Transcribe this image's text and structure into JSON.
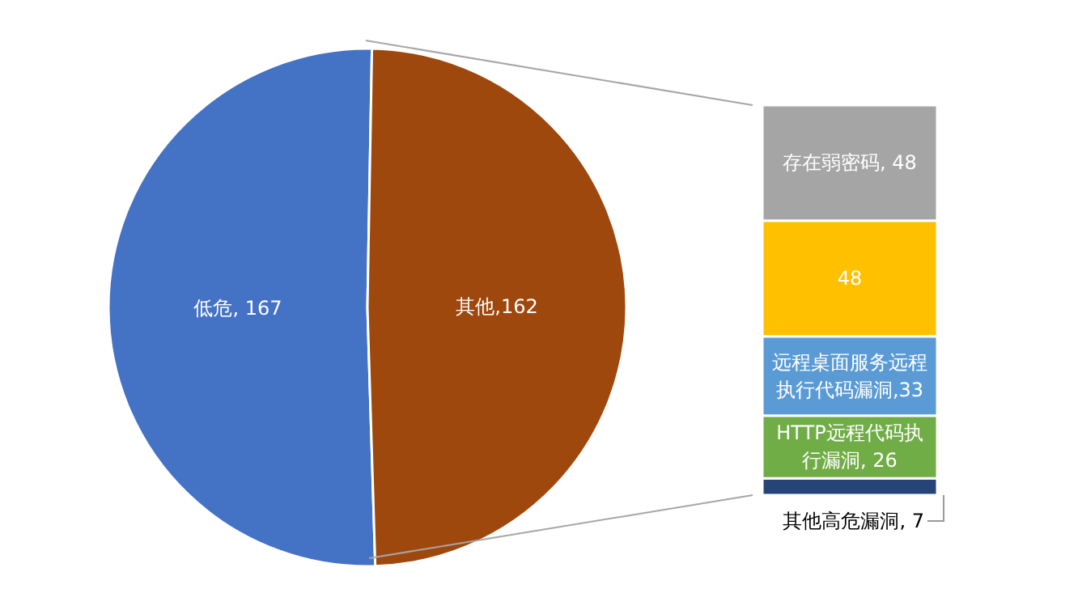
{
  "chart_data": [
    {
      "type": "pie",
      "categories": [
        "低危",
        "其他"
      ],
      "values": [
        167,
        162
      ],
      "colors": [
        "#4472c4",
        "#9e480e"
      ],
      "value_labels": [
        ", 167",
        ",162"
      ]
    },
    {
      "type": "bar",
      "stacked": true,
      "categories": [
        null
      ],
      "series": [
        {
          "name": "其他高危漏洞",
          "color": "#264478",
          "values": [
            7
          ],
          "value_labels": [
            ", 7"
          ]
        },
        {
          "name": "HTTP远程代码执行漏洞",
          "color": "#70ad47",
          "values": [
            26
          ],
          "value_labels": [
            ", 26"
          ]
        },
        {
          "name": "远程桌面服务远程执行代码漏洞",
          "color": "#5b9bd5",
          "values": [
            33
          ],
          "value_labels": [
            ",33"
          ]
        },
        {
          "color": "#ffc000",
          "values": [
            48
          ],
          "value_labels": [
            "48"
          ]
        },
        {
          "name": "存在弱密码",
          "color": "#a5a5a5",
          "values": [
            48
          ],
          "value_labels": [
            ", 48"
          ]
        }
      ]
    }
  ]
}
